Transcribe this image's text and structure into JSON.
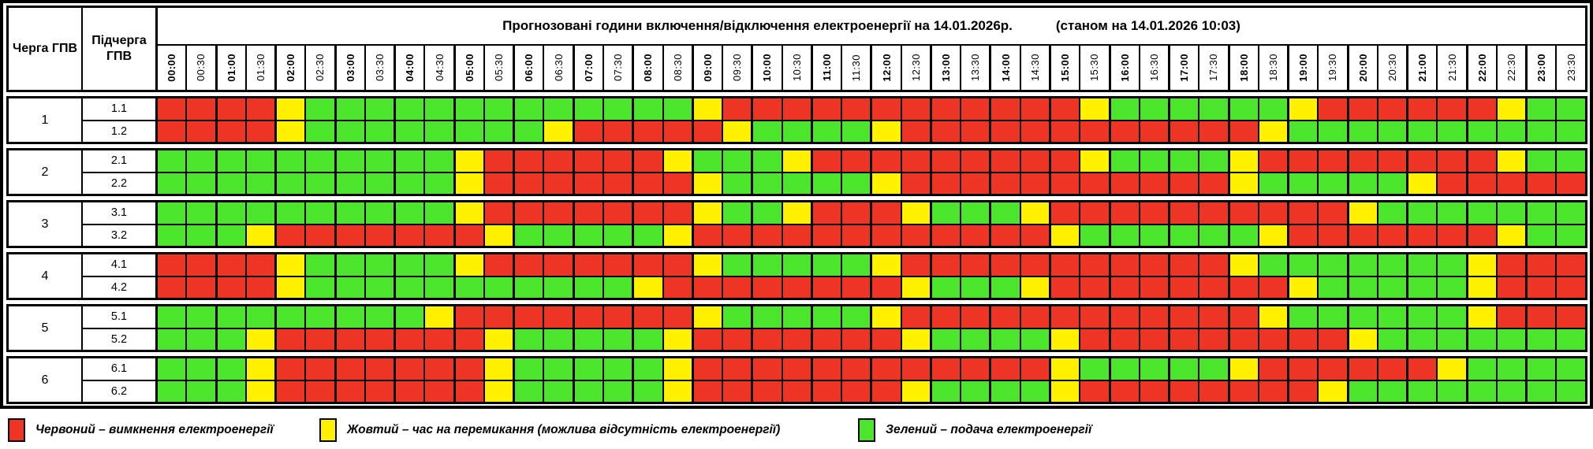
{
  "header": {
    "col1_label": "Черга ГПВ",
    "col2_label": "Підчерга ГПВ",
    "title": "Прогнозовані години включення/відключення електроенергії на 14.01.2026р.",
    "as_of": "(станом на 14.01.2026 10:03)"
  },
  "colors": {
    "R": "#EE3424",
    "Y": "#FFF100",
    "G": "#4CE42D"
  },
  "legend": [
    {
      "key": "red",
      "color": "#EE3424",
      "label": "Червоний – вимкнення електроенергії"
    },
    {
      "key": "yellow",
      "color": "#FFF100",
      "label": "Жовтий – час на перемикання (можлива відсутність електроенергії)"
    },
    {
      "key": "green",
      "color": "#4CE42D",
      "label": "Зелений – подача електроенергії"
    }
  ],
  "chart_data": {
    "type": "heatmap",
    "title": "Прогнозовані години включення/відключення електроенергії на 14.01.2026р.",
    "as_of": "(станом на 14.01.2026 10:03)",
    "cell_states": {
      "R": "вимкнення електроенергії",
      "Y": "час на перемикання (можлива відсутність електроенергії)",
      "G": "подача електроенергії"
    },
    "x_labels": [
      "00:00",
      "00:30",
      "01:00",
      "01:30",
      "02:00",
      "02:30",
      "03:00",
      "03:30",
      "04:00",
      "04:30",
      "05:00",
      "05:30",
      "06:00",
      "06:30",
      "07:00",
      "07:30",
      "08:00",
      "08:30",
      "09:00",
      "09:30",
      "10:00",
      "10:30",
      "11:00",
      "11:30",
      "12:00",
      "12:30",
      "13:00",
      "13:30",
      "14:00",
      "14:30",
      "15:00",
      "15:30",
      "16:00",
      "16:30",
      "17:00",
      "17:30",
      "18:00",
      "18:30",
      "19:00",
      "19:30",
      "20:00",
      "20:30",
      "21:00",
      "21:30",
      "22:00",
      "22:30",
      "23:00",
      "23:30"
    ],
    "groups": [
      {
        "queue": "1",
        "subqueues": [
          {
            "name": "1.1",
            "cells": "RRRRYGGGGGGGGGGGGGYRRRRRRRRRRRRYGGGGGGYRRRRRRYGG"
          },
          {
            "name": "1.2",
            "cells": "RRRRYGGGGGGGGYRRRRRYGGGGYRRRRRRRRRRRRYGGGGGGGGGG"
          }
        ]
      },
      {
        "queue": "2",
        "subqueues": [
          {
            "name": "2.1",
            "cells": "GGGGGGGGGGYRRRRRRYGGGYRRRRRRRRRYGGGGYRRRRRRRRYGG"
          },
          {
            "name": "2.2",
            "cells": "GGGGGGGGGGYRRRRRRRYGGGGGYRRRRRRRRRRRYGGGGGYRRRRR"
          }
        ]
      },
      {
        "queue": "3",
        "subqueues": [
          {
            "name": "3.1",
            "cells": "GGGGGGGGGGYRRRRRRRYGGYRRRYGGGYRRRRRRRRRRYGGGGGGG"
          },
          {
            "name": "3.2",
            "cells": "GGGYRRRRRRRYGGGGGYRRRRRRRRRRRRYGGGGGGYRRRRRRRYGG"
          }
        ]
      },
      {
        "queue": "4",
        "subqueues": [
          {
            "name": "4.1",
            "cells": "RRRRYGGGGGYRRRRRRRYGGGGGYRRRRRRRRRRRYGGGGGGGYRRR"
          },
          {
            "name": "4.2",
            "cells": "RRRRYGGGGGGGGGGGYRRRRRRRRYGGGYRRRRRRRRYGGGGGYRRR"
          }
        ]
      },
      {
        "queue": "5",
        "subqueues": [
          {
            "name": "5.1",
            "cells": "GGGGGGGGGYRRRRRRRRYGGGGGYRRRRRRRRRRRRYGGGGGGYRRR"
          },
          {
            "name": "5.2",
            "cells": "GGGYRRRRRRRYGGGGGYRRRRRRRYGGGGYRRRRRRRRRYGGGGGGG"
          }
        ]
      },
      {
        "queue": "6",
        "subqueues": [
          {
            "name": "6.1",
            "cells": "GGGYRRRRRRRYGGGGGYRRRRRRRRRRRRYGGGGGYRRRRRRYGGGG"
          },
          {
            "name": "6.2",
            "cells": "GGGYRRRRRRRYGGGGGYRRRRRRRYGGGGYRRRRRRRRYGGGGGGGG"
          }
        ]
      }
    ]
  }
}
